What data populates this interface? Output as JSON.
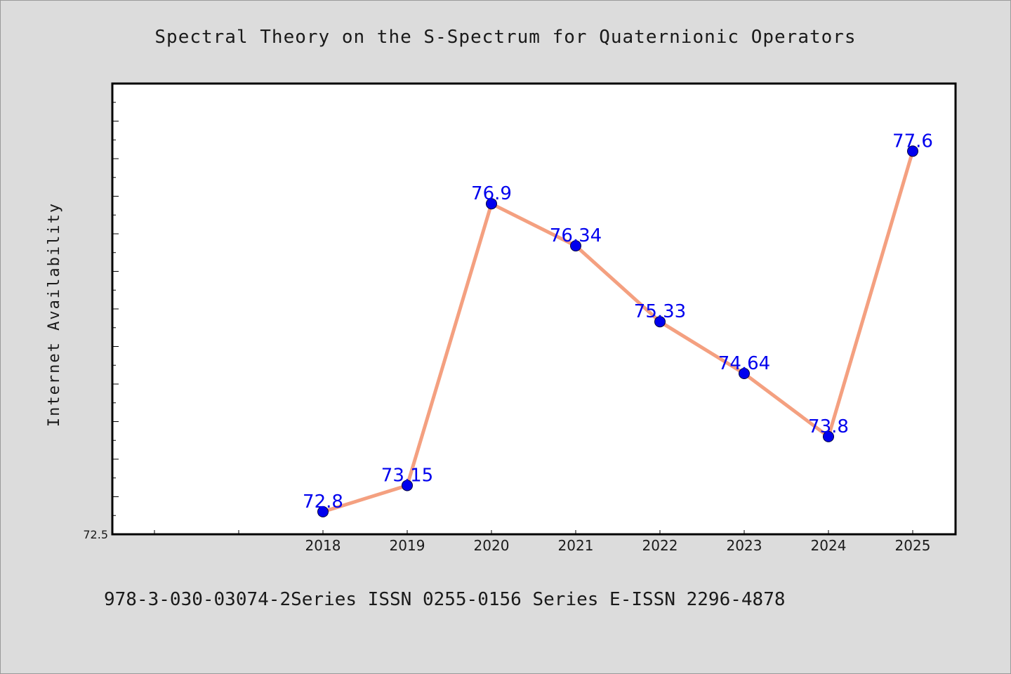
{
  "chart_data": {
    "type": "line",
    "title": "Spectral Theory on the S-Spectrum for Quaternionic Operators",
    "xlabel": "",
    "ylabel": "Internet Availability",
    "categories": [
      "2018",
      "2019",
      "2020",
      "2021",
      "2022",
      "2023",
      "2024",
      "2025"
    ],
    "values": [
      72.8,
      73.15,
      76.9,
      76.34,
      75.33,
      74.64,
      73.8,
      77.6
    ],
    "data_labels": [
      "72.8",
      "73.15",
      "76.9",
      "76.34",
      "75.33",
      "74.64",
      "73.8",
      "77.6"
    ],
    "ylim": [
      72.5,
      78.5
    ],
    "ytick_labels": [
      "72.5"
    ],
    "grid": false,
    "legend": "none",
    "line_color": "#f4a080",
    "marker_color": "#0000ee",
    "label_color": "#0000ee"
  },
  "footer": {
    "text": "978-3-030-03074-2Series ISSN 0255-0156 Series E-ISSN 2296-4878"
  }
}
